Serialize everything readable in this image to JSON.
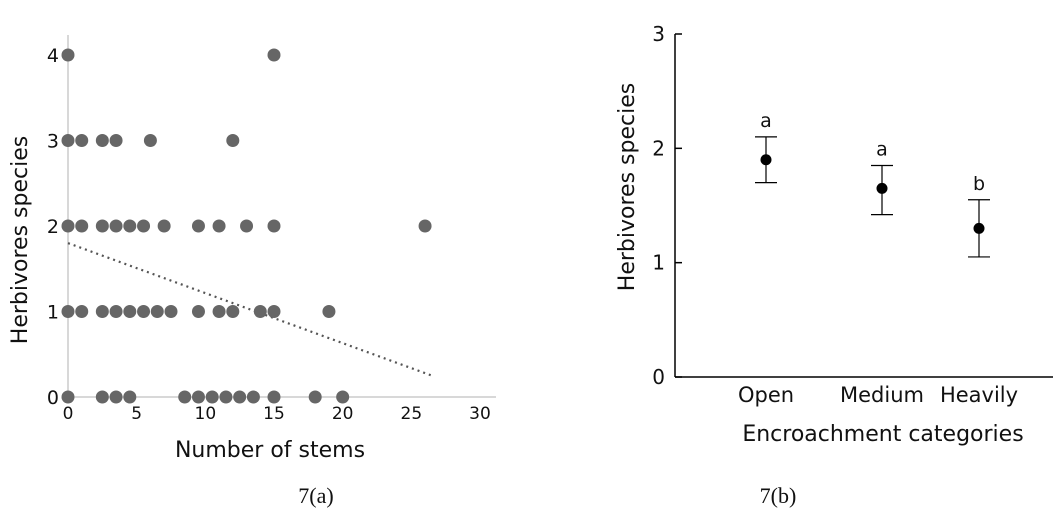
{
  "chart_data": [
    {
      "type": "scatter",
      "caption": "7(a)",
      "xlabel": "Number of stems",
      "ylabel": "Herbivores species",
      "xlim": [
        0,
        30
      ],
      "ylim": [
        0,
        4
      ],
      "x_ticks": [
        "0",
        "5",
        "10",
        "15",
        "20",
        "25",
        "30"
      ],
      "y_ticks": [
        "0",
        "1",
        "2",
        "3",
        "4"
      ],
      "points": [
        {
          "x": 0,
          "y": 4
        },
        {
          "x": 15,
          "y": 4
        },
        {
          "x": 0,
          "y": 3
        },
        {
          "x": 1,
          "y": 3
        },
        {
          "x": 2.5,
          "y": 3
        },
        {
          "x": 3.5,
          "y": 3
        },
        {
          "x": 6,
          "y": 3
        },
        {
          "x": 12,
          "y": 3
        },
        {
          "x": 0,
          "y": 2
        },
        {
          "x": 1,
          "y": 2
        },
        {
          "x": 2.5,
          "y": 2
        },
        {
          "x": 3.5,
          "y": 2
        },
        {
          "x": 4.5,
          "y": 2
        },
        {
          "x": 5.5,
          "y": 2
        },
        {
          "x": 7,
          "y": 2
        },
        {
          "x": 9.5,
          "y": 2
        },
        {
          "x": 11,
          "y": 2
        },
        {
          "x": 13,
          "y": 2
        },
        {
          "x": 15,
          "y": 2
        },
        {
          "x": 26,
          "y": 2
        },
        {
          "x": 0,
          "y": 1
        },
        {
          "x": 1,
          "y": 1
        },
        {
          "x": 2.5,
          "y": 1
        },
        {
          "x": 3.5,
          "y": 1
        },
        {
          "x": 4.5,
          "y": 1
        },
        {
          "x": 5.5,
          "y": 1
        },
        {
          "x": 6.5,
          "y": 1
        },
        {
          "x": 7.5,
          "y": 1
        },
        {
          "x": 9.5,
          "y": 1
        },
        {
          "x": 11,
          "y": 1
        },
        {
          "x": 12,
          "y": 1
        },
        {
          "x": 14,
          "y": 1
        },
        {
          "x": 15,
          "y": 1
        },
        {
          "x": 19,
          "y": 1
        },
        {
          "x": 0,
          "y": 0
        },
        {
          "x": 2.5,
          "y": 0
        },
        {
          "x": 3.5,
          "y": 0
        },
        {
          "x": 4.5,
          "y": 0
        },
        {
          "x": 8.5,
          "y": 0
        },
        {
          "x": 9.5,
          "y": 0
        },
        {
          "x": 10.5,
          "y": 0
        },
        {
          "x": 11.5,
          "y": 0
        },
        {
          "x": 12.5,
          "y": 0
        },
        {
          "x": 13.5,
          "y": 0
        },
        {
          "x": 15,
          "y": 0
        },
        {
          "x": 18,
          "y": 0
        },
        {
          "x": 20,
          "y": 0
        }
      ],
      "trendline": {
        "x": [
          0,
          26.5
        ],
        "y": [
          1.8,
          0.25
        ],
        "style": "dotted"
      },
      "colors": {
        "points": "#666666",
        "trendline": "#555555",
        "axis": "#cccccc"
      }
    },
    {
      "type": "scatter",
      "subtype": "mean-with-error-bars",
      "caption": "7(b)",
      "xlabel": "Encroachment categories",
      "ylabel": "Herbivores species",
      "ylim": [
        0,
        3
      ],
      "y_ticks": [
        "0",
        "1",
        "2",
        "3"
      ],
      "categories": [
        "Open",
        "Medium",
        "Heavily"
      ],
      "means": [
        1.9,
        1.65,
        1.3
      ],
      "error_low": [
        1.7,
        1.42,
        1.05
      ],
      "error_high": [
        2.1,
        1.85,
        1.55
      ],
      "letters": [
        "a",
        "a",
        "b"
      ],
      "colors": {
        "points": "#000000",
        "axis": "#000000"
      }
    }
  ]
}
